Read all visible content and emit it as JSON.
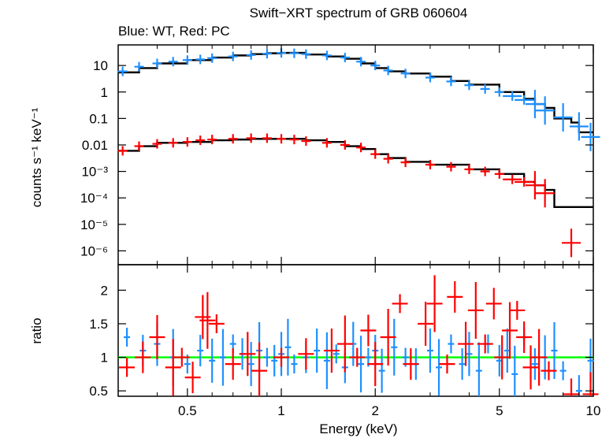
{
  "chart_data": {
    "type": "scatter",
    "title": "Swift−XRT spectrum of GRB 060604",
    "subtitle": "Blue: WT, Red: PC",
    "xlabel": "Energy (keV)",
    "x_scale": "log",
    "xlim": [
      0.3,
      10
    ],
    "x_ticks": [
      "0.5",
      "1",
      "2",
      "5",
      "10"
    ],
    "colors": {
      "wt": "#1e90ff",
      "pc": "#ff0000",
      "model": "#000000",
      "unity": "#00ff00"
    },
    "top_panel": {
      "ylabel": "counts s⁻¹ keV⁻¹",
      "y_scale": "log",
      "ylim": [
        3e-07,
        60
      ],
      "y_ticks": [
        "10",
        "1",
        "0.1",
        "0.01",
        "10⁻³",
        "10⁻⁴",
        "10⁻⁵",
        "10⁻⁶"
      ],
      "series": [
        {
          "key": "wt",
          "x": [
            0.31,
            0.35,
            0.4,
            0.45,
            0.5,
            0.55,
            0.6,
            0.7,
            0.8,
            0.9,
            1.0,
            1.1,
            1.2,
            1.4,
            1.6,
            1.8,
            2.0,
            2.2,
            2.5,
            3.0,
            3.5,
            4.0,
            4.5,
            5.0,
            5.5,
            6.0,
            6.5,
            7.0,
            8.0,
            9.0,
            9.8
          ],
          "y": [
            6,
            9,
            12,
            14,
            16,
            17,
            19,
            22,
            25,
            28,
            30,
            29,
            27,
            24,
            20,
            14,
            10,
            6.5,
            5,
            3.5,
            2.5,
            1.8,
            1.3,
            1.0,
            0.7,
            0.5,
            0.35,
            0.2,
            0.11,
            0.05,
            0.02
          ]
        },
        {
          "key": "pc",
          "x": [
            0.31,
            0.35,
            0.4,
            0.45,
            0.5,
            0.55,
            0.6,
            0.7,
            0.8,
            0.9,
            1.0,
            1.1,
            1.2,
            1.4,
            1.6,
            1.8,
            2.0,
            2.2,
            2.5,
            3.0,
            3.5,
            4.0,
            4.5,
            5.0,
            5.5,
            6.0,
            6.5,
            7.0,
            8.5
          ],
          "y": [
            0.006,
            0.009,
            0.011,
            0.012,
            0.013,
            0.015,
            0.016,
            0.017,
            0.018,
            0.018,
            0.017,
            0.016,
            0.014,
            0.012,
            0.01,
            0.008,
            0.0045,
            0.003,
            0.0022,
            0.0018,
            0.0015,
            0.0012,
            0.001,
            0.0008,
            0.0005,
            0.0004,
            0.0003,
            0.00015,
            2e-06
          ]
        }
      ],
      "model": [
        {
          "x": [
            0.3,
            0.35,
            0.4,
            0.5,
            0.6,
            0.7,
            0.8,
            0.9,
            1.0,
            1.2,
            1.4,
            1.6,
            1.8,
            2.0,
            2.2,
            2.5,
            3.0,
            3.5,
            4.0,
            5.0,
            6.0,
            6.5,
            7.0,
            7.5,
            8.5,
            9.0,
            10.0
          ],
          "y": [
            5.5,
            8,
            12,
            16,
            20,
            24,
            27,
            29,
            30,
            26,
            22,
            18,
            12,
            8,
            6,
            5,
            3.8,
            2.6,
            1.9,
            1.0,
            0.55,
            0.35,
            0.25,
            0.1,
            0.07,
            0.03,
            0.03
          ]
        },
        {
          "x": [
            0.3,
            0.35,
            0.4,
            0.5,
            0.6,
            0.7,
            0.8,
            1.0,
            1.2,
            1.4,
            1.6,
            1.8,
            2.0,
            2.2,
            2.5,
            3.0,
            4.0,
            5.0,
            6.0,
            6.5,
            7.0,
            7.5,
            10.0
          ],
          "y": [
            0.006,
            0.009,
            0.012,
            0.013,
            0.015,
            0.016,
            0.017,
            0.017,
            0.015,
            0.013,
            0.009,
            0.007,
            0.0045,
            0.0032,
            0.0023,
            0.0018,
            0.0012,
            0.0008,
            0.0004,
            0.0003,
            0.0002,
            4.5e-05,
            4.5e-05
          ]
        }
      ]
    },
    "bottom_panel": {
      "ylabel": "ratio",
      "ylim": [
        0.42,
        2.38
      ],
      "y_ticks": [
        "0.5",
        "1",
        "1.5",
        "2"
      ],
      "unity": 1,
      "series": [
        {
          "key": "wt",
          "x": [
            0.32,
            0.36,
            0.4,
            0.45,
            0.5,
            0.55,
            0.6,
            0.65,
            0.7,
            0.75,
            0.8,
            0.85,
            0.9,
            0.95,
            1.0,
            1.05,
            1.1,
            1.2,
            1.3,
            1.4,
            1.5,
            1.6,
            1.7,
            1.8,
            1.9,
            2.0,
            2.1,
            2.3,
            2.5,
            2.7,
            3.0,
            3.2,
            3.5,
            3.8,
            4.0,
            4.3,
            4.6,
            5.0,
            5.3,
            5.6,
            6.0,
            6.5,
            7.0,
            7.5,
            8.0,
            9.0,
            9.8
          ],
          "y": [
            1.3,
            1.1,
            1.2,
            1.0,
            0.9,
            1.1,
            0.95,
            1.0,
            1.2,
            1.05,
            0.9,
            1.1,
            1.0,
            0.95,
            1.05,
            1.15,
            0.9,
            1.0,
            1.1,
            0.95,
            1.05,
            0.85,
            1.2,
            0.9,
            1.0,
            1.1,
            0.8,
            1.15,
            1.0,
            0.9,
            1.1,
            0.85,
            1.2,
            0.9,
            1.05,
            0.8,
            1.2,
            0.95,
            1.1,
            0.75,
            1.3,
            0.9,
            1.0,
            1.1,
            0.8,
            0.5,
            0.95
          ]
        },
        {
          "key": "pc",
          "x": [
            0.32,
            0.36,
            0.4,
            0.45,
            0.48,
            0.52,
            0.56,
            0.58,
            0.62,
            0.7,
            0.78,
            0.85,
            1.0,
            1.2,
            1.45,
            1.6,
            1.75,
            1.9,
            2.0,
            2.2,
            2.4,
            2.6,
            2.9,
            3.1,
            3.4,
            3.6,
            3.9,
            4.2,
            4.5,
            4.8,
            5.1,
            5.4,
            5.7,
            6.0,
            6.3,
            6.7,
            7.2,
            8.5,
            9.8
          ],
          "y": [
            0.85,
            1.0,
            1.3,
            0.85,
            1.0,
            0.7,
            1.6,
            1.55,
            1.5,
            0.9,
            1.05,
            0.8,
            1.0,
            1.05,
            1.1,
            1.2,
            1.0,
            1.4,
            0.9,
            1.3,
            1.8,
            0.9,
            1.5,
            1.8,
            0.9,
            1.9,
            1.2,
            1.7,
            1.2,
            1.8,
            1.0,
            1.4,
            1.7,
            1.3,
            0.85,
            1.0,
            0.8,
            0.45,
            0.45
          ]
        }
      ]
    }
  }
}
